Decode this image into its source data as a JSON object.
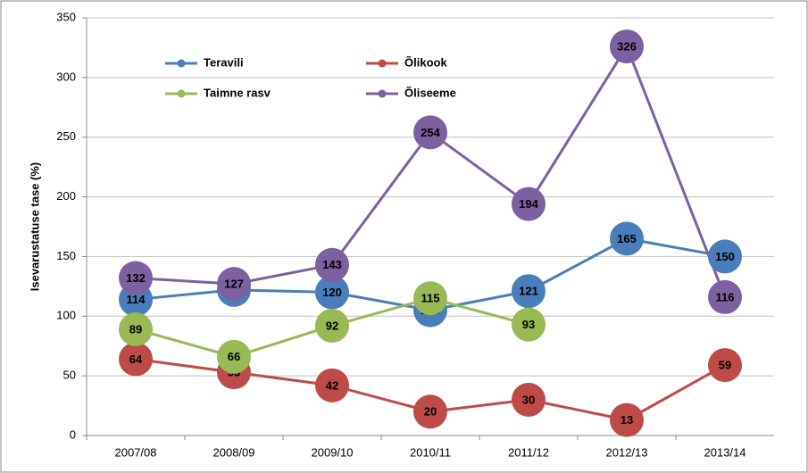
{
  "chart_data": {
    "type": "line",
    "y_label": "Isevarustatuse tase (%)",
    "categories": [
      "2007/08",
      "2008/09",
      "2009/10",
      "2010/11",
      "2011/12",
      "2012/13",
      "2013/14"
    ],
    "series": [
      {
        "name": "Teravili",
        "color": "#4a7ebb",
        "values": [
          114,
          122,
          120,
          105,
          121,
          165,
          150
        ]
      },
      {
        "name": "Õlikook",
        "color": "#be4b48",
        "values": [
          64,
          53,
          42,
          20,
          30,
          13,
          59
        ]
      },
      {
        "name": "Taimne rasv",
        "color": "#98b954",
        "values": [
          89,
          66,
          92,
          115,
          93,
          null,
          null
        ]
      },
      {
        "name": "Õliseeme",
        "color": "#7d60a0",
        "values": [
          132,
          127,
          143,
          254,
          194,
          326,
          116
        ]
      }
    ],
    "ylim": [
      0,
      350
    ],
    "yticks": [
      0,
      50,
      100,
      150,
      200,
      250,
      300,
      350
    ],
    "grid": true
  }
}
